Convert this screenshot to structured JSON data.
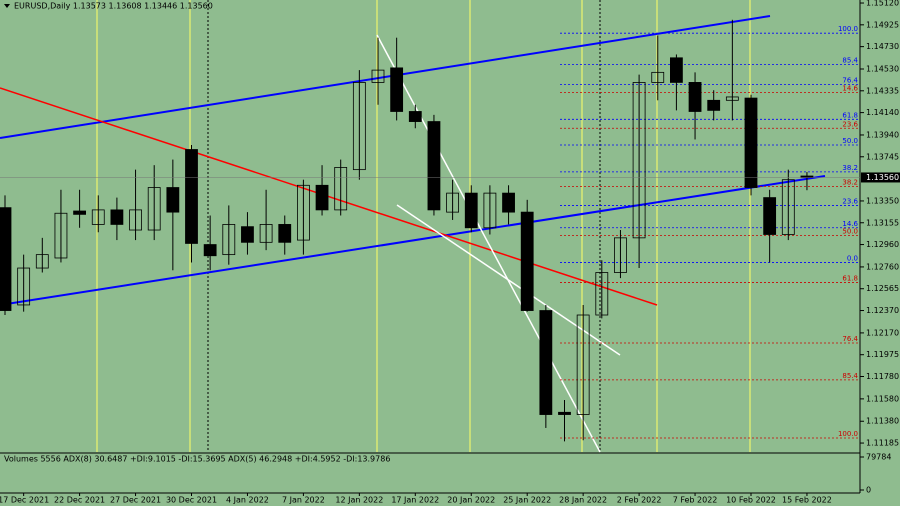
{
  "chart_data": {
    "type": "candlestick",
    "title": "EURUSD,Daily  1.13573 1.13608 1.13446 1.13560",
    "categories": [
      null,
      "17 Dec 2021",
      null,
      null,
      "22 Dec 2021",
      null,
      null,
      "27 Dec 2021",
      null,
      null,
      "30 Dec 2021",
      null,
      null,
      "4 Jan 2022",
      null,
      null,
      "7 Jan 2022",
      null,
      null,
      "12 Jan 2022",
      null,
      null,
      "17 Jan 2022",
      null,
      null,
      "20 Jan 2022",
      null,
      null,
      "25 Jan 2022",
      null,
      null,
      "28 Jan 2022",
      null,
      null,
      "2 Feb 2022",
      null,
      null,
      "7 Feb 2022",
      null,
      null,
      "10 Feb 2022",
      null,
      null,
      "15 Feb 2022"
    ],
    "open": [
      1.1329,
      1.1242,
      1.1275,
      1.1284,
      1.1326,
      1.1314,
      1.1327,
      1.1309,
      1.1309,
      1.1347,
      1.1381,
      1.1296,
      1.1287,
      1.1312,
      1.1298,
      1.1314,
      1.13,
      1.1349,
      1.1327,
      1.1363,
      1.1441,
      1.1454,
      1.1415,
      1.1406,
      1.1325,
      1.1342,
      1.1311,
      1.1342,
      1.1325,
      1.1237,
      1.1146,
      1.1144,
      1.1233,
      1.1271,
      1.1302,
      1.1441,
      1.1463,
      1.1441,
      1.1425,
      1.1425,
      1.1427,
      1.1338,
      1.1305,
      1.13573
    ],
    "high": [
      1.134,
      1.1287,
      1.1302,
      1.1345,
      1.1345,
      1.134,
      1.1338,
      1.1363,
      1.1367,
      1.1372,
      1.1385,
      1.1322,
      1.1331,
      1.1325,
      1.1345,
      1.1322,
      1.1354,
      1.1367,
      1.1372,
      1.1452,
      1.1481,
      1.1481,
      1.1421,
      1.1412,
      1.1354,
      1.1349,
      1.1349,
      1.1349,
      1.1336,
      1.1242,
      1.1157,
      1.1242,
      1.1282,
      1.1309,
      1.1448,
      1.1483,
      1.1466,
      1.145,
      1.1434,
      1.1497,
      1.143,
      1.1345,
      1.1363,
      1.13608
    ],
    "low": [
      1.1233,
      1.1236,
      1.1271,
      1.128,
      1.1311,
      1.1307,
      1.13,
      1.13,
      1.13,
      1.1273,
      1.128,
      1.1273,
      1.1278,
      1.1287,
      1.1291,
      1.1287,
      1.1287,
      1.1322,
      1.1322,
      1.1354,
      1.1421,
      1.1407,
      1.14,
      1.1322,
      1.1318,
      1.1307,
      1.1305,
      1.1314,
      1.1236,
      1.1132,
      1.112,
      1.1121,
      1.123,
      1.1266,
      1.1275,
      1.1425,
      1.1416,
      1.139,
      1.1407,
      1.1407,
      1.134,
      1.128,
      1.13,
      1.13446
    ],
    "close": [
      1.1237,
      1.1275,
      1.1287,
      1.1324,
      1.1323,
      1.1327,
      1.1314,
      1.1327,
      1.1347,
      1.1325,
      1.1297,
      1.1286,
      1.1314,
      1.1298,
      1.1314,
      1.1298,
      1.1349,
      1.1327,
      1.1365,
      1.1441,
      1.1452,
      1.1415,
      1.1406,
      1.1327,
      1.1342,
      1.1311,
      1.1342,
      1.1325,
      1.1237,
      1.1144,
      1.1144,
      1.1233,
      1.1271,
      1.1302,
      1.1441,
      1.145,
      1.1441,
      1.1415,
      1.1416,
      1.1428,
      1.1347,
      1.1305,
      1.1354,
      1.1356
    ],
    "ylim": [
      1.11096,
      1.15147
    ],
    "yticks": [
      {
        "value": 1.1512,
        "label": "1.15120"
      },
      {
        "value": 1.14925,
        "label": "1.14925"
      },
      {
        "value": 1.1473,
        "label": "1.14730"
      },
      {
        "value": 1.1453,
        "label": "1.14530"
      },
      {
        "value": 1.14335,
        "label": "1.14335"
      },
      {
        "value": 1.1414,
        "label": "1.14140"
      },
      {
        "value": 1.1394,
        "label": "1.13940"
      },
      {
        "value": 1.13745,
        "label": "1.13745"
      },
      {
        "value": 1.1335,
        "label": "1.13350"
      },
      {
        "value": 1.13155,
        "label": "1.13155"
      },
      {
        "value": 1.1296,
        "label": "1.12960"
      },
      {
        "value": 1.1276,
        "label": "1.12760"
      },
      {
        "value": 1.12565,
        "label": "1.12565"
      },
      {
        "value": 1.1237,
        "label": "1.12370"
      },
      {
        "value": 1.1217,
        "label": "1.12170"
      },
      {
        "value": 1.11975,
        "label": "1.11975"
      },
      {
        "value": 1.1178,
        "label": "1.11780"
      },
      {
        "value": 1.1158,
        "label": "1.11580"
      },
      {
        "value": 1.1138,
        "label": "1.11380"
      },
      {
        "value": 1.11185,
        "label": "1.11185"
      }
    ],
    "current_price": {
      "value": 1.1356,
      "label": "1.13560"
    },
    "fib_blue": [
      {
        "value": 1.1485,
        "label": "100.0"
      },
      {
        "value": 1.1457,
        "label": "85.4"
      },
      {
        "value": 1.1439,
        "label": "76.4"
      },
      {
        "value": 1.1408,
        "label": "61.8"
      },
      {
        "value": 1.1385,
        "label": "50.0"
      },
      {
        "value": 1.1361,
        "label": "38.2"
      },
      {
        "value": 1.1331,
        "label": "23.6"
      },
      {
        "value": 1.1311,
        "label": "14.6"
      },
      {
        "value": 1.128,
        "label": "0.0"
      }
    ],
    "fib_red": [
      {
        "value": 1.1432,
        "label": "14.6"
      },
      {
        "value": 1.14,
        "label": "23.6"
      },
      {
        "value": 1.1348,
        "label": "38.2"
      },
      {
        "value": 1.1304,
        "label": "50.0"
      },
      {
        "value": 1.1262,
        "label": "61.8"
      },
      {
        "value": 1.1208,
        "label": "76.4"
      },
      {
        "value": 1.1175,
        "label": "85.4"
      },
      {
        "value": 1.1123,
        "label": "100.0"
      }
    ],
    "indicator_title": "Volumes 5556  ADX(8) 30.6487 +DI:9.1015 -DI:15.3695  ADX(5) 46.2948 +DI:4.5952 -DI:13.9786",
    "volume_ylim": [
      0,
      79784
    ],
    "volume_yticks": [
      79784,
      0
    ]
  }
}
